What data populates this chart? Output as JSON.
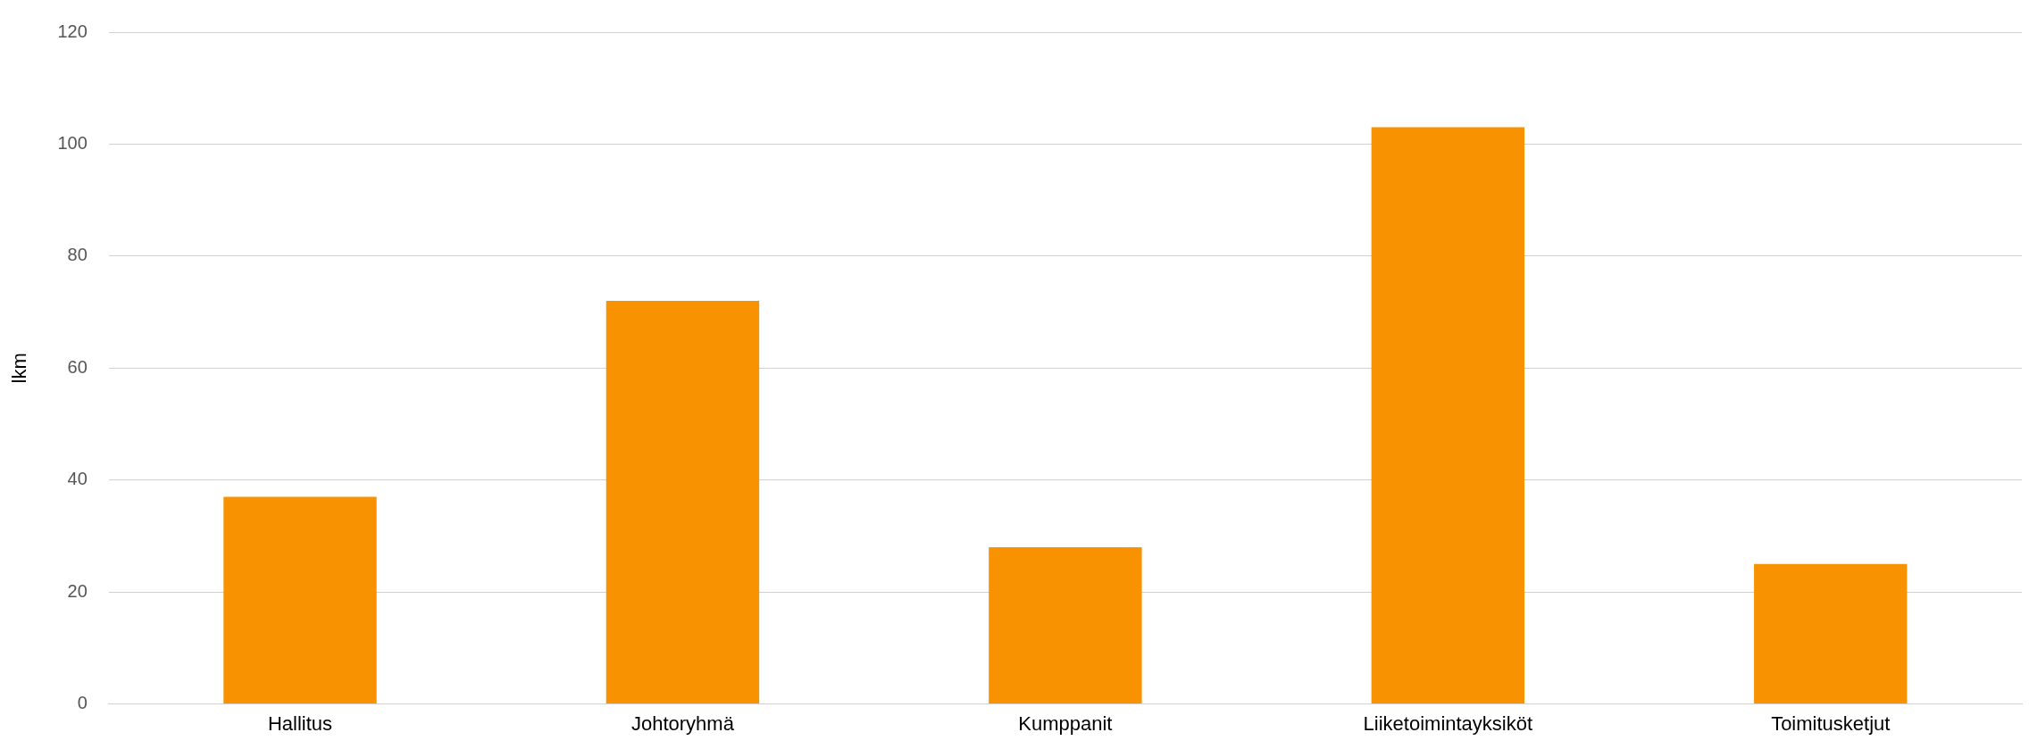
{
  "chart_data": {
    "type": "bar",
    "ylabel": "lkm",
    "categories": [
      "Hallitus",
      "Johtoryhmä",
      "Kumppanit",
      "Liiketoimintayksiköt",
      "Toimitusketjut"
    ],
    "values": [
      37,
      72,
      28,
      103,
      25
    ],
    "color": "#f89200",
    "ylim": [
      0,
      120
    ],
    "yticks": [
      0,
      20,
      40,
      60,
      80,
      100,
      120
    ],
    "grid": "y",
    "legend": false
  }
}
